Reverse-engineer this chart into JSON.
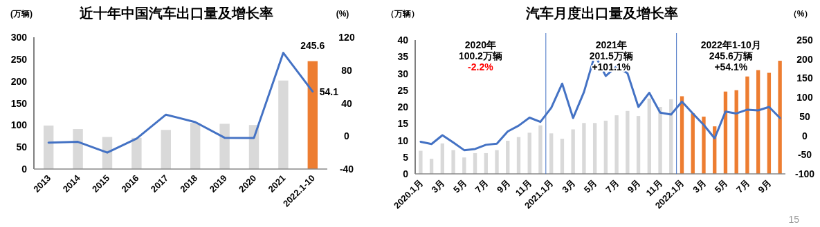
{
  "chart_data": [
    {
      "type": "bar",
      "title": "近十年中国汽车出口量及增长率",
      "ylabel": "(万辆)",
      "y2label": "(%)",
      "categories": [
        "2013",
        "2014",
        "2015",
        "2016",
        "2017",
        "2018",
        "2019",
        "2020",
        "2021",
        "2022.1-10"
      ],
      "series": [
        {
          "colors": [
            "#d9d9d9",
            "#d9d9d9",
            "#d9d9d9",
            "#d9d9d9",
            "#d9d9d9",
            "#d9d9d9",
            "#d9d9d9",
            "#d9d9d9",
            "#d9d9d9",
            "#ed7d31"
          ],
          "values": [
            99,
            91,
            73,
            71,
            89,
            105,
            103,
            100.2,
            201.5,
            245.6
          ],
          "value_labels": [
            null,
            null,
            null,
            null,
            null,
            null,
            null,
            null,
            null,
            "245.6"
          ]
        },
        {
          "type": "line",
          "axis": "y2",
          "color": "#4472c4",
          "values": [
            -8,
            -7,
            -20,
            -3,
            26,
            17,
            -2,
            -2.2,
            101.1,
            54.1
          ],
          "value_labels": [
            null,
            null,
            null,
            null,
            null,
            null,
            null,
            null,
            null,
            "54.1"
          ]
        }
      ],
      "ylim": [
        0,
        300
      ],
      "yticks": [
        0,
        50,
        100,
        150,
        200,
        250,
        300
      ],
      "y2lim": [
        -40,
        120
      ],
      "y2ticks": [
        -40,
        0,
        40,
        80,
        120
      ],
      "grid": false
    },
    {
      "type": "bar",
      "title": "汽车月度出口量及增长率",
      "ylabel": "（万辆）",
      "y2label": "（%）",
      "categories": [
        "2020.1月",
        null,
        "3月",
        null,
        "5月",
        null,
        "7月",
        null,
        "9月",
        null,
        "11月",
        null,
        "2021.1月",
        null,
        "3月",
        null,
        "5月",
        null,
        "7月",
        null,
        "9月",
        null,
        "11月",
        null,
        "2022.1月",
        null,
        "3月",
        null,
        "5月",
        null,
        "7月",
        null,
        "9月",
        null
      ],
      "series": [
        {
          "colors": [
            "#d9d9d9",
            "#d9d9d9",
            "#d9d9d9",
            "#d9d9d9",
            "#d9d9d9",
            "#d9d9d9",
            "#d9d9d9",
            "#d9d9d9",
            "#d9d9d9",
            "#d9d9d9",
            "#d9d9d9",
            "#d9d9d9",
            "#d9d9d9",
            "#d9d9d9",
            "#d9d9d9",
            "#d9d9d9",
            "#d9d9d9",
            "#d9d9d9",
            "#d9d9d9",
            "#d9d9d9",
            "#d9d9d9",
            "#d9d9d9",
            "#d9d9d9",
            "#d9d9d9",
            "#ed7d31",
            "#ed7d31",
            "#ed7d31",
            "#ed7d31",
            "#ed7d31",
            "#ed7d31",
            "#ed7d31",
            "#ed7d31",
            "#ed7d31",
            "#ed7d31"
          ],
          "values": [
            6.9,
            4.5,
            9.1,
            7.1,
            4.9,
            6.2,
            6.2,
            7.1,
            9.9,
            11.0,
            12.3,
            14.5,
            12.1,
            10.5,
            13.3,
            15.2,
            15.2,
            15.9,
            17.5,
            18.8,
            17.3,
            22.5,
            20.0,
            22.3,
            23.2,
            18.1,
            17.1,
            14.2,
            24.6,
            25.0,
            29.1,
            31.0,
            30.2,
            33.8
          ]
        },
        {
          "type": "line",
          "axis": "y2",
          "color": "#4472c4",
          "values": [
            -16,
            -22,
            1,
            -18,
            -38,
            -35,
            -24,
            -21,
            11,
            26,
            47,
            36,
            73,
            136,
            46,
            114,
            211,
            156,
            181,
            163,
            75,
            112,
            60,
            55,
            89,
            58,
            28,
            -7,
            63,
            58,
            68,
            66,
            75,
            46
          ]
        }
      ],
      "ylim": [
        0,
        40
      ],
      "yticks": [
        0,
        5,
        10,
        15,
        20,
        25,
        30,
        35,
        40
      ],
      "y2lim": [
        -100,
        250
      ],
      "y2ticks": [
        -100,
        -50,
        0,
        50,
        100,
        150,
        200,
        250
      ],
      "annotations": [
        "2020年",
        "100.2万辆",
        "-2.2%",
        "2021年",
        "201.5万辆",
        "+101.1%",
        "2022年1-10月",
        "245.6万辆",
        "+54.1%",
        "15"
      ],
      "grid": false
    }
  ]
}
